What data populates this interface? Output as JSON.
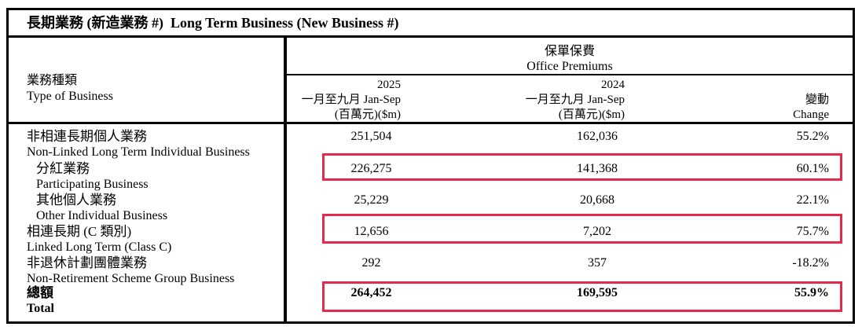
{
  "title": "長期業務 (新造業務 #)  Long Term Business (New Business #)",
  "header": {
    "type_of_business": {
      "zh": "業務種類",
      "en": "Type of Business"
    },
    "premiums_group": {
      "zh": "保單保費",
      "en": "Office Premiums"
    },
    "col_2025": {
      "year": "2025",
      "period": "一月至九月 Jan-Sep",
      "unit": "(百萬元)($m)"
    },
    "col_2024": {
      "year": "2024",
      "period": "一月至九月 Jan-Sep",
      "unit": "(百萬元)($m)"
    },
    "col_change": {
      "zh": "變動",
      "en": "Change"
    }
  },
  "rows": [
    {
      "zh": "非相連長期個人業務",
      "en": "Non-Linked Long Term Individual Business",
      "v2025": "251,504",
      "v2024": "162,036",
      "change": "55.2%",
      "indent": false,
      "bold": false,
      "highlighted": false
    },
    {
      "zh": "分紅業務",
      "en": "Participating Business",
      "v2025": "226,275",
      "v2024": "141,368",
      "change": "60.1%",
      "indent": true,
      "bold": false,
      "highlighted": true
    },
    {
      "zh": "其他個人業務",
      "en": "Other Individual Business",
      "v2025": "25,229",
      "v2024": "20,668",
      "change": "22.1%",
      "indent": true,
      "bold": false,
      "highlighted": false
    },
    {
      "zh": "相連長期 (C 類別)",
      "en": "Linked Long Term (Class C)",
      "v2025": "12,656",
      "v2024": "7,202",
      "change": "75.7%",
      "indent": false,
      "bold": false,
      "highlighted": false
    },
    {
      "zh": "非退休計劃團體業務",
      "en": "Non-Retirement Scheme Group Business",
      "v2025": "292",
      "v2024": "357",
      "change": "-18.2%",
      "indent": false,
      "bold": false,
      "highlighted": false
    },
    {
      "zh": "總額",
      "en": "Total",
      "v2025": "264,452",
      "v2024": "169,595",
      "change": "55.9%",
      "indent": false,
      "bold": true,
      "highlighted": true
    }
  ],
  "colors": {
    "highlight_border": "#e32a4f",
    "table_border": "#000000"
  }
}
